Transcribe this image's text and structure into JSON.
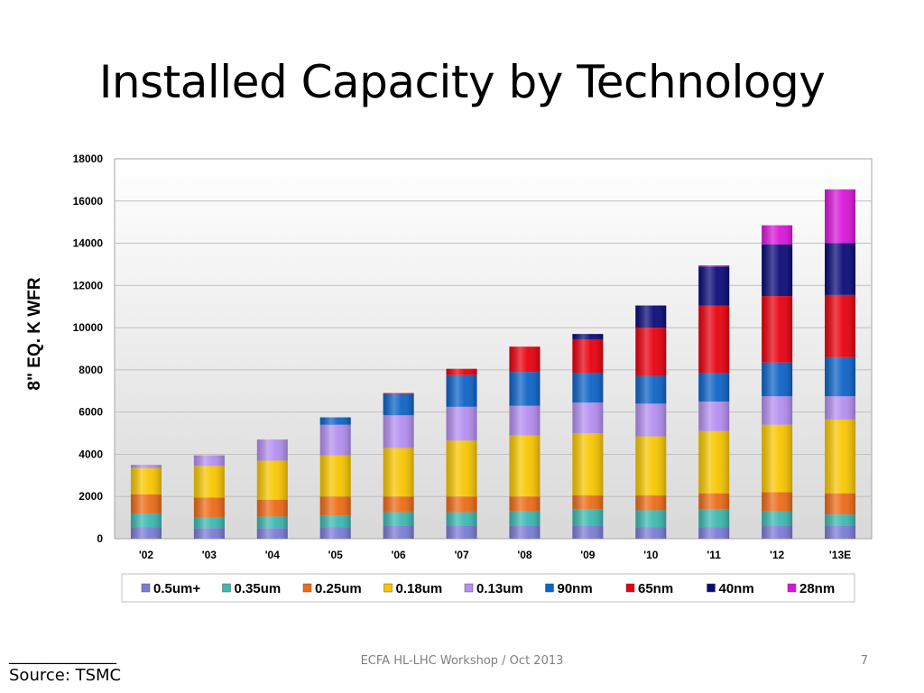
{
  "slide": {
    "title": "Installed Capacity by Technology",
    "footnote_rule": "______________",
    "source": "Source: TSMC",
    "footer": "ECFA HL-LHC Workshop / Oct 2013",
    "page_number": "7"
  },
  "chart_data": {
    "type": "bar",
    "stacked": true,
    "title": "",
    "xlabel": "",
    "ylabel": "8\" EQ. K WFR",
    "ylim": [
      0,
      18000
    ],
    "yticks": [
      0,
      2000,
      4000,
      6000,
      8000,
      10000,
      12000,
      14000,
      16000,
      18000
    ],
    "grid": true,
    "legend_position": "bottom",
    "categories": [
      "'02",
      "'03",
      "'04",
      "'05",
      "'06",
      "'07",
      "'08",
      "'09",
      "'10",
      "'11",
      "'12",
      "'13E"
    ],
    "series": [
      {
        "name": "0.5um+",
        "color": "#7b7bd6",
        "values": [
          550,
          500,
          500,
          550,
          600,
          600,
          600,
          600,
          550,
          550,
          600,
          600
        ]
      },
      {
        "name": "0.35um",
        "color": "#3cb8b0",
        "values": [
          650,
          500,
          550,
          550,
          650,
          650,
          700,
          800,
          800,
          850,
          700,
          550
        ]
      },
      {
        "name": "0.25um",
        "color": "#ec6b18",
        "values": [
          900,
          950,
          800,
          900,
          750,
          750,
          700,
          650,
          700,
          750,
          900,
          1000
        ]
      },
      {
        "name": "0.18um",
        "color": "#f7c600",
        "values": [
          1250,
          1500,
          1850,
          1950,
          2300,
          2650,
          2900,
          2950,
          2800,
          2950,
          3200,
          3500
        ]
      },
      {
        "name": "0.13um",
        "color": "#b48ef0",
        "values": [
          150,
          500,
          1000,
          1450,
          1550,
          1600,
          1400,
          1450,
          1550,
          1400,
          1350,
          1100
        ]
      },
      {
        "name": "90nm",
        "color": "#0d63c7",
        "values": [
          0,
          0,
          0,
          350,
          1000,
          1500,
          1600,
          1400,
          1300,
          1350,
          1600,
          1850
        ]
      },
      {
        "name": "65nm",
        "color": "#e8000e",
        "values": [
          0,
          0,
          0,
          0,
          50,
          300,
          1200,
          1600,
          2300,
          3200,
          3150,
          2950
        ]
      },
      {
        "name": "40nm",
        "color": "#0a0a78",
        "values": [
          0,
          0,
          0,
          0,
          0,
          0,
          0,
          250,
          1050,
          1850,
          2450,
          2450
        ]
      },
      {
        "name": "28nm",
        "color": "#d816d8",
        "values": [
          0,
          0,
          0,
          0,
          0,
          0,
          0,
          0,
          0,
          50,
          900,
          2550
        ]
      }
    ]
  }
}
